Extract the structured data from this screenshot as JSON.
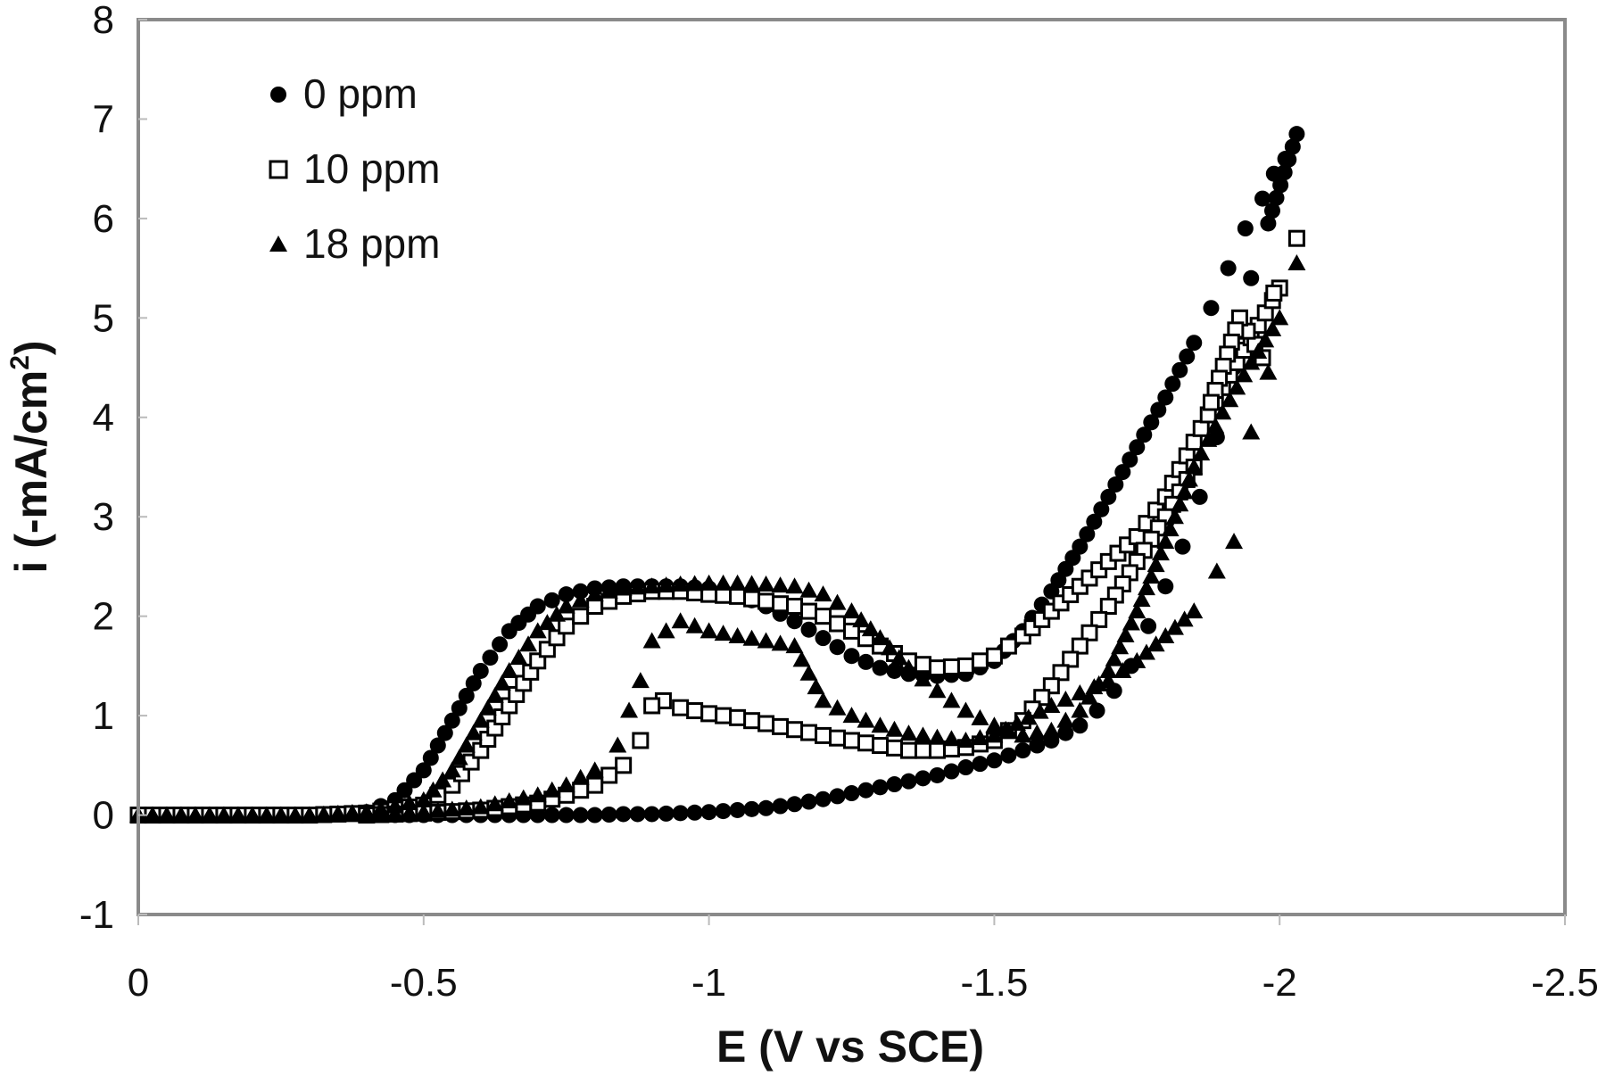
{
  "chart_data": {
    "type": "scatter",
    "title": "",
    "xlabel": "E (V vs SCE)",
    "ylabel": "i (-mA/cm",
    "ylabel_superscript": "2",
    "ylabel_suffix": ")",
    "xlim": [
      0,
      -2.5
    ],
    "ylim": [
      -1,
      8
    ],
    "x_ticks": [
      0,
      -0.5,
      -1,
      -1.5,
      -2,
      -2.5
    ],
    "x_tick_labels": [
      "0",
      "-0.5",
      "-1",
      "-1.5",
      "-2",
      "-2.5"
    ],
    "y_ticks": [
      -1,
      0,
      1,
      2,
      3,
      4,
      5,
      6,
      7,
      8
    ],
    "y_tick_labels": [
      "-1",
      "0",
      "1",
      "2",
      "3",
      "4",
      "5",
      "6",
      "7",
      "8"
    ],
    "grid": false,
    "legend_position": "upper-left",
    "series": [
      {
        "name": "0 ppm",
        "marker": "filled-circle",
        "color": "#000000",
        "x": [
          0,
          -0.05,
          -0.1,
          -0.15,
          -0.2,
          -0.25,
          -0.3,
          -0.35,
          -0.4,
          -0.45,
          -0.5,
          -0.55,
          -0.6,
          -0.65,
          -0.7,
          -0.75,
          -0.8,
          -0.85,
          -0.9,
          -0.95,
          -1.0,
          -1.05,
          -1.1,
          -1.15,
          -1.2,
          -1.25,
          -1.3,
          -1.35,
          -1.4,
          -1.45,
          -1.5,
          -1.55,
          -1.6,
          -1.65,
          -1.7,
          -1.75,
          -1.8,
          -1.85,
          -1.88,
          -1.91,
          -1.94,
          -1.97,
          -1.99,
          -2.01,
          -2.03,
          -1.98,
          -1.95,
          -1.92,
          -1.89,
          -1.86,
          -1.83,
          -1.8,
          -1.77,
          -1.74,
          -1.71,
          -1.68,
          -1.65,
          -1.6,
          -1.55,
          -1.5,
          -1.45,
          -1.4,
          -1.35,
          -1.3,
          -1.25,
          -1.2,
          -1.15,
          -1.1,
          -1.05,
          -1.0,
          -0.95,
          -0.9,
          -0.85,
          -0.8,
          -0.75,
          -0.7,
          -0.65,
          -0.6,
          -0.55,
          -0.5,
          -0.45,
          -0.4
        ],
        "y": [
          0,
          0,
          0,
          0,
          0,
          0,
          0,
          0.01,
          0.03,
          0.15,
          0.45,
          0.95,
          1.45,
          1.85,
          2.1,
          2.22,
          2.28,
          2.3,
          2.3,
          2.3,
          2.28,
          2.22,
          2.1,
          1.95,
          1.78,
          1.6,
          1.48,
          1.42,
          1.4,
          1.42,
          1.55,
          1.85,
          2.25,
          2.7,
          3.2,
          3.7,
          4.2,
          4.75,
          5.1,
          5.5,
          5.9,
          6.2,
          6.45,
          6.6,
          6.85,
          5.95,
          5.4,
          4.5,
          3.8,
          3.2,
          2.7,
          2.3,
          1.9,
          1.5,
          1.25,
          1.05,
          0.9,
          0.75,
          0.65,
          0.55,
          0.48,
          0.4,
          0.34,
          0.28,
          0.22,
          0.16,
          0.11,
          0.07,
          0.05,
          0.03,
          0.02,
          0.01,
          0.01,
          0,
          0,
          0,
          0,
          0,
          0,
          0,
          0,
          0
        ]
      },
      {
        "name": "10 ppm",
        "marker": "open-square",
        "color": "#000000",
        "x": [
          0,
          -0.1,
          -0.2,
          -0.3,
          -0.4,
          -0.5,
          -0.55,
          -0.6,
          -0.65,
          -0.7,
          -0.75,
          -0.8,
          -0.85,
          -0.9,
          -0.95,
          -1.0,
          -1.05,
          -1.1,
          -1.15,
          -1.2,
          -1.25,
          -1.3,
          -1.35,
          -1.4,
          -1.45,
          -1.5,
          -1.55,
          -1.6,
          -1.65,
          -1.7,
          -1.75,
          -1.8,
          -1.85,
          -1.9,
          -1.95,
          -2.0,
          -2.03,
          -1.99,
          -1.97,
          -1.93,
          -1.88,
          -1.85,
          -1.8,
          -1.75,
          -1.7,
          -1.65,
          -1.6,
          -1.55,
          -1.5,
          -1.45,
          -1.4,
          -1.35,
          -1.3,
          -1.25,
          -1.2,
          -1.15,
          -1.1,
          -1.05,
          -1.0,
          -0.95,
          -0.92,
          -0.9,
          -0.88,
          -0.85,
          -0.8,
          -0.75,
          -0.7,
          -0.6,
          -0.5,
          -0.4
        ],
        "y": [
          0,
          0,
          0,
          0,
          0.02,
          0.1,
          0.3,
          0.65,
          1.1,
          1.55,
          1.9,
          2.1,
          2.2,
          2.25,
          2.25,
          2.22,
          2.2,
          2.15,
          2.1,
          2.0,
          1.85,
          1.7,
          1.55,
          1.48,
          1.5,
          1.6,
          1.8,
          2.05,
          2.3,
          2.55,
          2.8,
          3.2,
          3.75,
          4.3,
          4.8,
          5.3,
          5.8,
          5.25,
          4.6,
          5.0,
          4.15,
          3.5,
          3.0,
          2.55,
          2.1,
          1.7,
          1.3,
          0.95,
          0.75,
          0.68,
          0.65,
          0.65,
          0.7,
          0.75,
          0.8,
          0.86,
          0.92,
          0.98,
          1.02,
          1.08,
          1.15,
          1.1,
          0.75,
          0.5,
          0.3,
          0.2,
          0.12,
          0.05,
          0.02,
          0
        ]
      },
      {
        "name": "18 ppm",
        "marker": "filled-triangle",
        "color": "#000000",
        "x": [
          0,
          -0.1,
          -0.2,
          -0.3,
          -0.4,
          -0.5,
          -0.55,
          -0.6,
          -0.65,
          -0.7,
          -0.75,
          -0.8,
          -0.85,
          -0.9,
          -0.95,
          -1.0,
          -1.05,
          -1.1,
          -1.15,
          -1.2,
          -1.25,
          -1.3,
          -1.35,
          -1.4,
          -1.45,
          -1.5,
          -1.55,
          -1.6,
          -1.65,
          -1.7,
          -1.75,
          -1.8,
          -1.85,
          -1.9,
          -1.95,
          -2.0,
          -2.03,
          -1.98,
          -1.95,
          -1.92,
          -1.89,
          -1.85,
          -1.8,
          -1.75,
          -1.7,
          -1.6,
          -1.5,
          -1.45,
          -1.4,
          -1.35,
          -1.3,
          -1.25,
          -1.2,
          -1.15,
          -1.1,
          -1.05,
          -1.0,
          -0.95,
          -0.9,
          -0.88,
          -0.86,
          -0.84,
          -0.8,
          -0.75,
          -0.7,
          -0.6,
          -0.5,
          -0.4
        ],
        "y": [
          0,
          0,
          0,
          0,
          0.03,
          0.15,
          0.45,
          0.95,
          1.45,
          1.85,
          2.1,
          2.22,
          2.28,
          2.3,
          2.32,
          2.33,
          2.33,
          2.32,
          2.3,
          2.22,
          2.05,
          1.78,
          1.48,
          1.25,
          1.05,
          0.9,
          0.8,
          0.85,
          1.05,
          1.45,
          2.05,
          2.75,
          3.5,
          4.05,
          4.55,
          5.0,
          5.55,
          4.45,
          3.85,
          2.75,
          2.45,
          2.05,
          1.8,
          1.55,
          1.35,
          1.1,
          0.8,
          0.75,
          0.78,
          0.82,
          0.9,
          1.0,
          1.15,
          1.7,
          1.75,
          1.8,
          1.85,
          1.95,
          1.75,
          1.35,
          1.05,
          0.7,
          0.45,
          0.3,
          0.2,
          0.08,
          0.03,
          0
        ]
      }
    ]
  },
  "legend": {
    "items": [
      {
        "label": "0 ppm",
        "marker": "filled-circle"
      },
      {
        "label": "10 ppm",
        "marker": "open-square"
      },
      {
        "label": "18 ppm",
        "marker": "filled-triangle"
      }
    ]
  },
  "colors": {
    "frame": "#8a8a8a",
    "marker": "#000000",
    "background": "#ffffff"
  }
}
